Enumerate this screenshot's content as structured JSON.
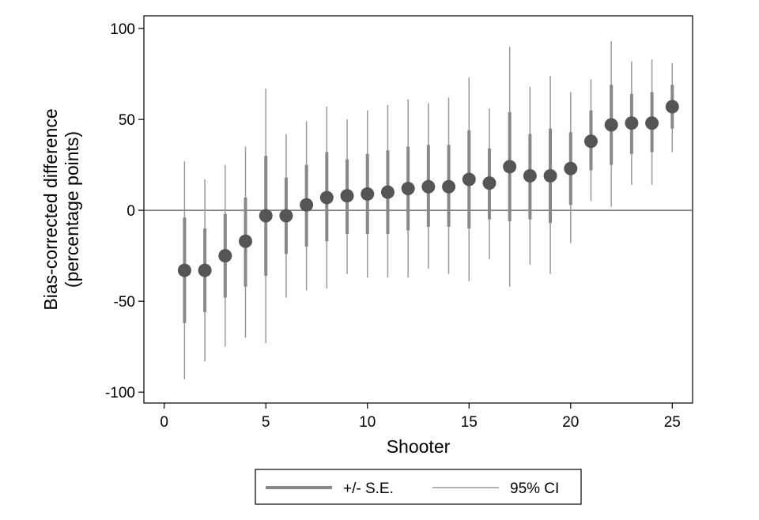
{
  "chart_data": {
    "type": "scatter",
    "xlabel": "Shooter",
    "ylabel": [
      "Bias-corrected difference",
      "(percentage points)"
    ],
    "xlim": [
      -1,
      26
    ],
    "ylim": [
      -106,
      107
    ],
    "xticks": [
      "0",
      "5",
      "10",
      "15",
      "20",
      "25"
    ],
    "yticks": [
      "100",
      "50",
      "0",
      "-50",
      "-100"
    ],
    "reference_line": 0,
    "grid": false,
    "legend_position": "bottom",
    "colors": {
      "marker": "#555555",
      "se_bar": "#888888",
      "ci_line": "#999999",
      "axis": "#000000",
      "zero_line": "#555555"
    },
    "series": [
      {
        "name": "+/- S.E.",
        "kind": "thick-bar"
      },
      {
        "name": "95% CI",
        "kind": "thin-line"
      }
    ],
    "points": [
      {
        "x": 1,
        "y": -33,
        "se_low": -62,
        "se_high": -4,
        "ci_low": -93,
        "ci_high": 27
      },
      {
        "x": 2,
        "y": -33,
        "se_low": -56,
        "se_high": -10,
        "ci_low": -83,
        "ci_high": 17
      },
      {
        "x": 3,
        "y": -25,
        "se_low": -48,
        "se_high": -2,
        "ci_low": -75,
        "ci_high": 25
      },
      {
        "x": 4,
        "y": -17,
        "se_low": -42,
        "se_high": 7,
        "ci_low": -70,
        "ci_high": 35
      },
      {
        "x": 5,
        "y": -3,
        "se_low": -36,
        "se_high": 30,
        "ci_low": -73,
        "ci_high": 67
      },
      {
        "x": 6,
        "y": -3,
        "se_low": -24,
        "se_high": 18,
        "ci_low": -48,
        "ci_high": 42
      },
      {
        "x": 7,
        "y": 3,
        "se_low": -20,
        "se_high": 25,
        "ci_low": -44,
        "ci_high": 49
      },
      {
        "x": 8,
        "y": 7,
        "se_low": -17,
        "se_high": 32,
        "ci_low": -43,
        "ci_high": 57
      },
      {
        "x": 9,
        "y": 8,
        "se_low": -13,
        "se_high": 28,
        "ci_low": -35,
        "ci_high": 50
      },
      {
        "x": 10,
        "y": 9,
        "se_low": -13,
        "se_high": 31,
        "ci_low": -37,
        "ci_high": 55
      },
      {
        "x": 11,
        "y": 10,
        "se_low": -13,
        "se_high": 33,
        "ci_low": -37,
        "ci_high": 58
      },
      {
        "x": 12,
        "y": 12,
        "se_low": -11,
        "se_high": 35,
        "ci_low": -37,
        "ci_high": 61
      },
      {
        "x": 13,
        "y": 13,
        "se_low": -9,
        "se_high": 36,
        "ci_low": -32,
        "ci_high": 59
      },
      {
        "x": 14,
        "y": 13,
        "se_low": -9,
        "se_high": 36,
        "ci_low": -35,
        "ci_high": 62
      },
      {
        "x": 15,
        "y": 17,
        "se_low": -10,
        "se_high": 44,
        "ci_low": -39,
        "ci_high": 73
      },
      {
        "x": 16,
        "y": 15,
        "se_low": -5,
        "se_high": 34,
        "ci_low": -27,
        "ci_high": 56
      },
      {
        "x": 17,
        "y": 24,
        "se_low": -6,
        "se_high": 54,
        "ci_low": -42,
        "ci_high": 90
      },
      {
        "x": 18,
        "y": 19,
        "se_low": -5,
        "se_high": 42,
        "ci_low": -30,
        "ci_high": 68
      },
      {
        "x": 19,
        "y": 19,
        "se_low": -7,
        "se_high": 45,
        "ci_low": -35,
        "ci_high": 74
      },
      {
        "x": 20,
        "y": 23,
        "se_low": 3,
        "se_high": 43,
        "ci_low": -18,
        "ci_high": 65
      },
      {
        "x": 21,
        "y": 38,
        "se_low": 22,
        "se_high": 55,
        "ci_low": 5,
        "ci_high": 72
      },
      {
        "x": 22,
        "y": 47,
        "se_low": 25,
        "se_high": 69,
        "ci_low": 2,
        "ci_high": 93
      },
      {
        "x": 23,
        "y": 48,
        "se_low": 31,
        "se_high": 64,
        "ci_low": 14,
        "ci_high": 82
      },
      {
        "x": 24,
        "y": 48,
        "se_low": 32,
        "se_high": 65,
        "ci_low": 14,
        "ci_high": 83
      },
      {
        "x": 25,
        "y": 57,
        "se_low": 45,
        "se_high": 69,
        "ci_low": 32,
        "ci_high": 81
      }
    ]
  }
}
